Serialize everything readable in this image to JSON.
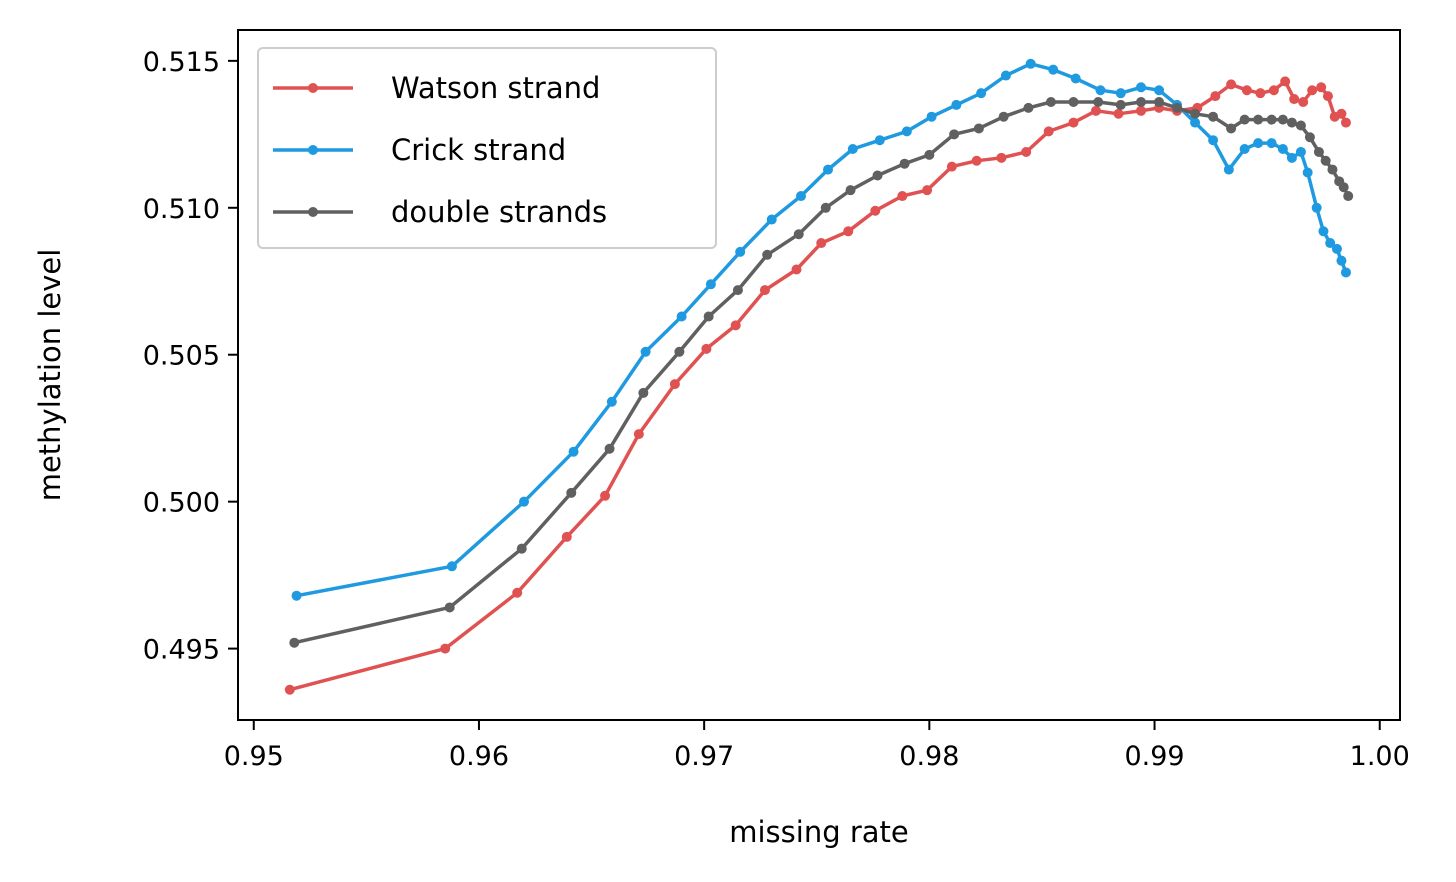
{
  "chart_data": {
    "type": "line",
    "title": "",
    "xlabel": "missing rate",
    "ylabel": "methylation level",
    "xlim": [
      0.9493,
      1.0009
    ],
    "ylim": [
      0.49257,
      0.51605
    ],
    "xticks": [
      {
        "value": 0.95,
        "label": "0.95"
      },
      {
        "value": 0.96,
        "label": "0.96"
      },
      {
        "value": 0.97,
        "label": "0.97"
      },
      {
        "value": 0.98,
        "label": "0.98"
      },
      {
        "value": 0.99,
        "label": "0.99"
      },
      {
        "value": 1.0,
        "label": "1.00"
      }
    ],
    "yticks": [
      {
        "value": 0.495,
        "label": "0.495"
      },
      {
        "value": 0.5,
        "label": "0.500"
      },
      {
        "value": 0.505,
        "label": "0.505"
      },
      {
        "value": 0.51,
        "label": "0.510"
      },
      {
        "value": 0.515,
        "label": "0.515"
      }
    ],
    "grid": false,
    "legend_position": "top-left",
    "series": [
      {
        "name": "Watson strand",
        "color": "#e05252",
        "x": [
          0.9516,
          0.9585,
          0.9617,
          0.9639,
          0.9656,
          0.9671,
          0.9687,
          0.9701,
          0.9714,
          0.9727,
          0.9741,
          0.9752,
          0.9764,
          0.9776,
          0.9788,
          0.9799,
          0.981,
          0.9821,
          0.9832,
          0.9843,
          0.9853,
          0.9864,
          0.9874,
          0.9884,
          0.9894,
          0.9902,
          0.991,
          0.9919,
          0.9927,
          0.9934,
          0.9941,
          0.9947,
          0.9953,
          0.9958,
          0.9962,
          0.9966,
          0.997,
          0.9974,
          0.9977,
          0.998,
          0.9983,
          0.9985
        ],
        "y": [
          0.4936,
          0.495,
          0.4969,
          0.4988,
          0.5002,
          0.5023,
          0.504,
          0.5052,
          0.506,
          0.5072,
          0.5079,
          0.5088,
          0.5092,
          0.5099,
          0.5104,
          0.5106,
          0.5114,
          0.5116,
          0.5117,
          0.5119,
          0.5126,
          0.5129,
          0.5133,
          0.5132,
          0.5133,
          0.5134,
          0.5133,
          0.5134,
          0.5138,
          0.5142,
          0.514,
          0.5139,
          0.514,
          0.5143,
          0.5137,
          0.5136,
          0.514,
          0.5141,
          0.5138,
          0.5131,
          0.5132,
          0.5129
        ]
      },
      {
        "name": "Crick strand",
        "color": "#1f9ae0",
        "x": [
          0.9519,
          0.9588,
          0.962,
          0.9642,
          0.9659,
          0.9674,
          0.969,
          0.9703,
          0.9716,
          0.973,
          0.9743,
          0.9755,
          0.9766,
          0.9778,
          0.979,
          0.9801,
          0.9812,
          0.9823,
          0.9834,
          0.9845,
          0.9855,
          0.9865,
          0.9876,
          0.9885,
          0.9894,
          0.9902,
          0.991,
          0.9918,
          0.9926,
          0.9933,
          0.994,
          0.9946,
          0.9952,
          0.9957,
          0.9961,
          0.9965,
          0.9968,
          0.9972,
          0.9975,
          0.9978,
          0.9981,
          0.9983,
          0.9985
        ],
        "y": [
          0.4968,
          0.4978,
          0.5,
          0.5017,
          0.5034,
          0.5051,
          0.5063,
          0.5074,
          0.5085,
          0.5096,
          0.5104,
          0.5113,
          0.512,
          0.5123,
          0.5126,
          0.5131,
          0.5135,
          0.5139,
          0.5145,
          0.5149,
          0.5147,
          0.5144,
          0.514,
          0.5139,
          0.5141,
          0.514,
          0.5135,
          0.5129,
          0.5123,
          0.5113,
          0.512,
          0.5122,
          0.5122,
          0.512,
          0.5117,
          0.5119,
          0.5112,
          0.51,
          0.5092,
          0.5088,
          0.5086,
          0.5082,
          0.5078
        ]
      },
      {
        "name": "double strands",
        "color": "#606060",
        "x": [
          0.9518,
          0.9587,
          0.9619,
          0.9641,
          0.9658,
          0.9673,
          0.9689,
          0.9702,
          0.9715,
          0.9728,
          0.9742,
          0.9754,
          0.9765,
          0.9777,
          0.9789,
          0.98,
          0.9811,
          0.9822,
          0.9833,
          0.9844,
          0.9854,
          0.9864,
          0.9875,
          0.9885,
          0.9894,
          0.9902,
          0.991,
          0.9918,
          0.9926,
          0.9934,
          0.994,
          0.9946,
          0.9952,
          0.9957,
          0.9961,
          0.9965,
          0.9969,
          0.9973,
          0.9976,
          0.9979,
          0.9982,
          0.9984,
          0.9986
        ],
        "y": [
          0.4952,
          0.4964,
          0.4984,
          0.5003,
          0.5018,
          0.5037,
          0.5051,
          0.5063,
          0.5072,
          0.5084,
          0.5091,
          0.51,
          0.5106,
          0.5111,
          0.5115,
          0.5118,
          0.5125,
          0.5127,
          0.5131,
          0.5134,
          0.5136,
          0.5136,
          0.5136,
          0.5135,
          0.5136,
          0.5136,
          0.5134,
          0.5132,
          0.5131,
          0.5127,
          0.513,
          0.513,
          0.513,
          0.513,
          0.5129,
          0.5128,
          0.5124,
          0.5119,
          0.5116,
          0.5113,
          0.5109,
          0.5107,
          0.5104
        ]
      }
    ]
  }
}
